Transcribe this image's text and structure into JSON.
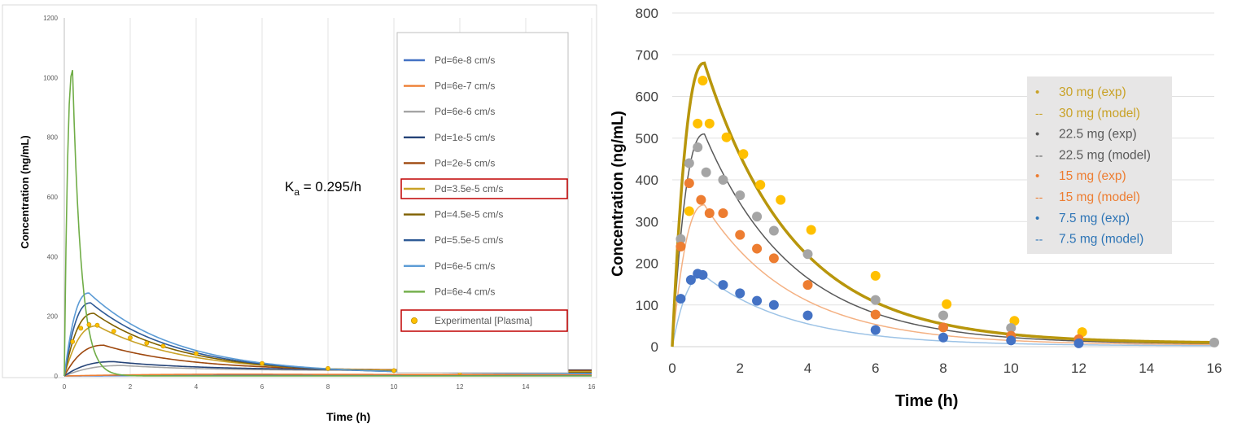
{
  "chart_data": [
    {
      "type": "line",
      "xlabel": "Time (h)",
      "ylabel": "Concentration (ng/mL)",
      "xlim": [
        0,
        16
      ],
      "ylim": [
        0,
        1200
      ],
      "xticks": [
        "0",
        "2",
        "4",
        "6",
        "8",
        "10",
        "12",
        "14",
        "16"
      ],
      "yticks": [
        "0",
        "200",
        "400",
        "600",
        "800",
        "1000",
        "1200"
      ],
      "grid": "vertical",
      "legend_position": "right",
      "annotation": {
        "main": "K",
        "sub": "a",
        "rest": " = 0.295/h"
      },
      "series": [
        {
          "name": "Pd=6e-8 cm/s",
          "color": "#4472c4",
          "peak": 2,
          "tpeak": 8.0,
          "end": 2
        },
        {
          "name": "Pd=6e-7 cm/s",
          "color": "#ed7d31",
          "peak": 6,
          "tpeak": 6.0,
          "end": 5
        },
        {
          "name": "Pd=6e-6 cm/s",
          "color": "#a5a5a5",
          "peak": 35,
          "tpeak": 1.8,
          "end": 18
        },
        {
          "name": "Pd=1e-5 cm/s",
          "color": "#264478",
          "peak": 48,
          "tpeak": 1.5,
          "end": 20
        },
        {
          "name": "Pd=2e-5 cm/s",
          "color": "#9e480e",
          "peak": 103,
          "tpeak": 1.2,
          "end": 18
        },
        {
          "name": "Pd=3.5e-5 cm/s",
          "color": "#c9a227",
          "peak": 168,
          "tpeak": 1.0,
          "end": 14,
          "highlight": true
        },
        {
          "name": "Pd=4.5e-5 cm/s",
          "color": "#7f6000",
          "peak": 210,
          "tpeak": 0.9,
          "end": 10
        },
        {
          "name": "Pd=5.5e-5 cm/s",
          "color": "#2e5a96",
          "peak": 245,
          "tpeak": 0.8,
          "end": 8
        },
        {
          "name": "Pd=6e-5 cm/s",
          "color": "#5b9bd5",
          "peak": 278,
          "tpeak": 0.75,
          "end": 7
        },
        {
          "name": "Pd=6e-4 cm/s",
          "color": "#70ad47",
          "peak": 1025,
          "tpeak": 0.25,
          "end": 0
        }
      ],
      "experimental": {
        "name": "Experimental [Plasma]",
        "color": "#ffc000",
        "x": [
          0.25,
          0.5,
          0.75,
          1.0,
          1.5,
          2.0,
          2.5,
          3.0,
          4.0,
          6.0,
          8.0,
          10.0,
          12.0
        ],
        "y": [
          115,
          160,
          172,
          170,
          150,
          128,
          110,
          100,
          75,
          42,
          25,
          18,
          12
        ]
      }
    },
    {
      "type": "line",
      "xlabel": "Time (h)",
      "ylabel": "Concentration (ng/mL)",
      "xlim": [
        0,
        16
      ],
      "ylim": [
        0,
        800
      ],
      "xticks": [
        "0",
        "2",
        "4",
        "6",
        "8",
        "10",
        "12",
        "14",
        "16"
      ],
      "yticks": [
        "0",
        "100",
        "200",
        "300",
        "400",
        "500",
        "600",
        "700",
        "800"
      ],
      "grid": "horizontal",
      "legend_position": "top-right",
      "legend": [
        {
          "marker": "•",
          "label": "30 mg (exp)",
          "color": "#c9a227"
        },
        {
          "marker": "--",
          "label": "30 mg (model)",
          "color": "#c9a227"
        },
        {
          "marker": "•",
          "label": "22.5 mg (exp)",
          "color": "#595959"
        },
        {
          "marker": "--",
          "label": "22.5 mg (model)",
          "color": "#595959"
        },
        {
          "marker": "•",
          "label": "15 mg (exp)",
          "color": "#ed7d31"
        },
        {
          "marker": "--",
          "label": "15 mg (model)",
          "color": "#ed7d31"
        },
        {
          "marker": "•",
          "label": "7.5 mg (exp)",
          "color": "#2e75b6"
        },
        {
          "marker": "--",
          "label": "7.5 mg (model)",
          "color": "#2e75b6"
        }
      ],
      "models": [
        {
          "name": "30 mg (model)",
          "color": "#b8960c",
          "width": 3.5,
          "peak": 680,
          "tpeak": 0.95,
          "end": 8
        },
        {
          "name": "22.5 mg (model)",
          "color": "#595959",
          "width": 1.5,
          "peak": 510,
          "tpeak": 0.95,
          "end": 6
        },
        {
          "name": "15 mg (model)",
          "color": "#f4b183",
          "width": 1.5,
          "peak": 340,
          "tpeak": 0.95,
          "end": 4
        },
        {
          "name": "7.5 mg (model)",
          "color": "#9dc3e6",
          "width": 1.5,
          "peak": 170,
          "tpeak": 0.95,
          "end": 2
        }
      ],
      "experiments": [
        {
          "name": "30 mg (exp)",
          "color": "#ffc000",
          "x": [
            0.5,
            0.75,
            0.9,
            1.1,
            1.6,
            2.1,
            2.6,
            3.2,
            4.1,
            6.0,
            8.1,
            10.1,
            12.1
          ],
          "y": [
            325,
            535,
            638,
            535,
            502,
            462,
            388,
            352,
            280,
            170,
            102,
            62,
            35
          ]
        },
        {
          "name": "22.5 mg (exp)",
          "color": "#a5a5a5",
          "x": [
            0.25,
            0.5,
            0.75,
            1.0,
            1.5,
            2.0,
            2.5,
            3.0,
            4.0,
            6.0,
            8.0,
            10.0,
            16.0
          ],
          "y": [
            258,
            440,
            478,
            418,
            400,
            363,
            312,
            278,
            222,
            112,
            75,
            45,
            10
          ]
        },
        {
          "name": "15 mg (exp)",
          "color": "#ed7d31",
          "x": [
            0.25,
            0.5,
            0.85,
            1.1,
            1.5,
            2.0,
            2.5,
            3.0,
            4.0,
            6.0,
            8.0,
            10.0,
            12.0
          ],
          "y": [
            240,
            392,
            352,
            320,
            320,
            268,
            235,
            212,
            148,
            77,
            46,
            26,
            18
          ]
        },
        {
          "name": "7.5 mg (exp)",
          "color": "#4472c4",
          "x": [
            0.25,
            0.55,
            0.75,
            0.9,
            1.5,
            2.0,
            2.5,
            3.0,
            4.0,
            6.0,
            8.0,
            10.0,
            12.0
          ],
          "y": [
            115,
            160,
            175,
            172,
            148,
            128,
            110,
            100,
            75,
            40,
            22,
            15,
            8
          ]
        }
      ]
    }
  ]
}
